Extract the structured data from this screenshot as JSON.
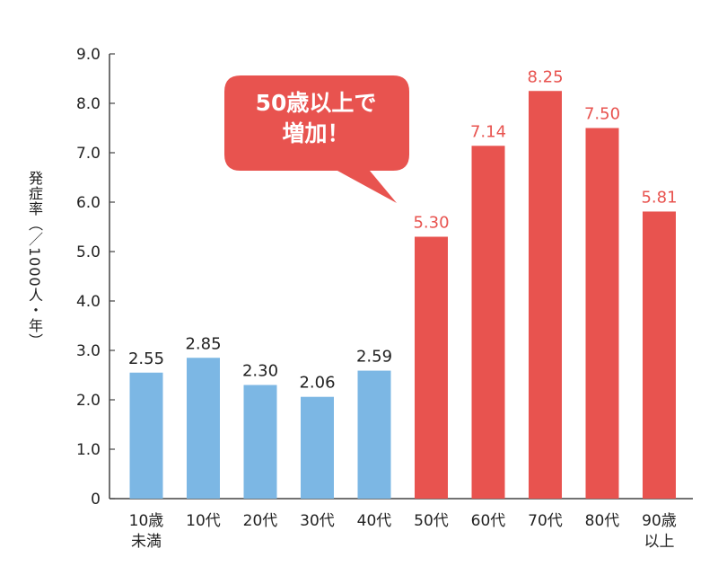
{
  "chart_data": {
    "type": "bar",
    "ylabel": "発症率（／1000人・年）",
    "ylim": [
      0,
      9.0
    ],
    "yticks": [
      "0",
      "1.0",
      "2.0",
      "3.0",
      "4.0",
      "5.0",
      "6.0",
      "7.0",
      "8.0",
      "9.0"
    ],
    "categories": [
      [
        "10歳",
        "未満"
      ],
      [
        "10代"
      ],
      [
        "20代"
      ],
      [
        "30代"
      ],
      [
        "40代"
      ],
      [
        "50代"
      ],
      [
        "60代"
      ],
      [
        "70代"
      ],
      [
        "80代"
      ],
      [
        "90歳",
        "以上"
      ]
    ],
    "values": [
      2.55,
      2.85,
      2.3,
      2.06,
      2.59,
      5.3,
      7.14,
      8.25,
      7.5,
      5.81
    ],
    "value_labels": [
      "2.55",
      "2.85",
      "2.30",
      "2.06",
      "2.59",
      "5.30",
      "7.14",
      "8.25",
      "7.50",
      "5.81"
    ],
    "colors": {
      "low": "#7cb7e4",
      "high": "#e8534f",
      "high_label": "#e8534f",
      "low_label": "#222222",
      "axis": "#444444"
    },
    "highlight_from_index": 5,
    "annotation": {
      "lines": [
        "50歳以上で",
        "増加！"
      ]
    },
    "grid": false
  }
}
